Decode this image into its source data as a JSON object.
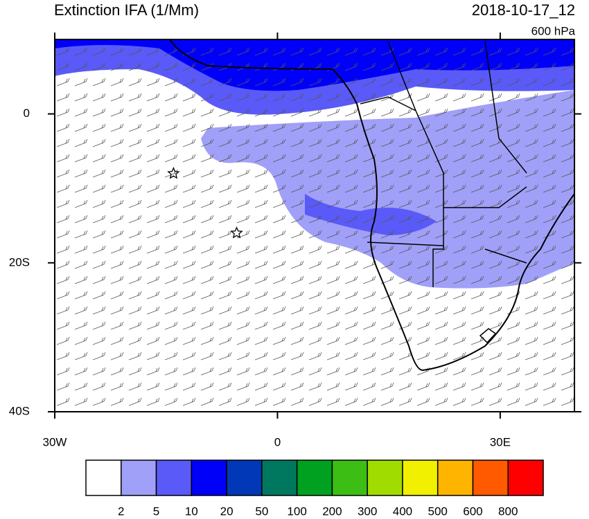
{
  "header": {
    "title": "Extinction IFA (1/Mm)",
    "time": "2018-10-17_12",
    "level": "600 hPa"
  },
  "map": {
    "lonlim": [
      -30,
      40
    ],
    "latlim": [
      -40,
      10
    ],
    "lon_ticks": [
      {
        "value": -30,
        "label": "30W"
      },
      0,
      {
        "value": 30,
        "label": "30E"
      }
    ],
    "lat_ticks": [
      {
        "value": -40,
        "label": "40S"
      },
      {
        "value": -20,
        "label": "20S"
      },
      0
    ],
    "markers": [
      {
        "lon": -14,
        "lat": -8
      },
      {
        "lon": -5.5,
        "lat": -16
      }
    ]
  },
  "colorbar": {
    "levels": [
      2,
      5,
      10,
      20,
      50,
      100,
      200,
      300,
      400,
      500,
      600,
      800
    ],
    "colors": [
      "#ffffff",
      "#a0a0f8",
      "#5a5af8",
      "#0000f8",
      "#0038b8",
      "#007860",
      "#00a020",
      "#3cbe14",
      "#a0dc00",
      "#f0f000",
      "#ffb400",
      "#ff5a00",
      "#ff0000"
    ]
  }
}
